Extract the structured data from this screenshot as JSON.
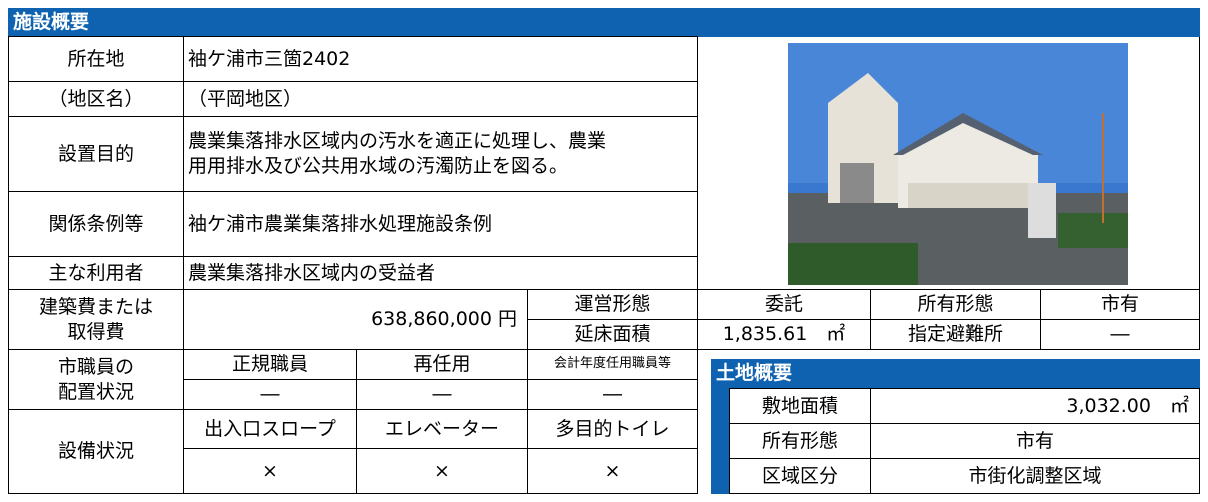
{
  "header": {
    "title": "施設概要"
  },
  "location": {
    "label": "所在地",
    "district_label": "（地区名）",
    "value": "袖ケ浦市三箇2402",
    "district": "（平岡地区）"
  },
  "purpose": {
    "label": "設置目的",
    "value": [
      "農業集落排水区域内の汚水を適正に処理し、農業",
      "用用排水及び公共用水域の汚濁防止を図る。"
    ]
  },
  "ordinance": {
    "label": "関係条例等",
    "value": "袖ケ浦市農業集落排水処理施設条例"
  },
  "users": {
    "label": "主な利用者",
    "value": "農業集落排水区域内の受益者"
  },
  "cost": {
    "label": [
      "建築費または",
      "取得費"
    ],
    "value": "638,860,000 円"
  },
  "operation": {
    "label": "運営形態",
    "value": "委託"
  },
  "floor_area": {
    "label": "延床面積",
    "value": "1,835.61　㎡"
  },
  "ownership": {
    "label": "所有形態",
    "value": "市有"
  },
  "evacuation": {
    "label": "指定避難所",
    "value": "―"
  },
  "staff": {
    "label": [
      "市職員の",
      "配置状況"
    ],
    "headers": [
      "正規職員",
      "再任用",
      "会計年度任用職員等"
    ],
    "values": [
      "―",
      "―",
      "―"
    ]
  },
  "equipment": {
    "label": "設備状況",
    "headers": [
      "出入口スロープ",
      "エレベーター",
      "多目的トイレ"
    ],
    "values": [
      "×",
      "×",
      "×"
    ]
  },
  "land": {
    "title": "土地概要",
    "rows": [
      [
        "敷地面積",
        "3,032.00　㎡"
      ],
      [
        "所有形態",
        "市有"
      ],
      [
        "区域区分",
        "市街化調整区域"
      ]
    ]
  }
}
